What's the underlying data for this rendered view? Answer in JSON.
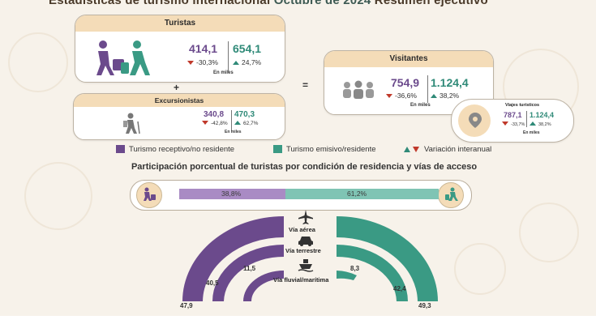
{
  "header": {
    "title": "Estadísticas de turismo internacional",
    "period": "Octubre de 2024",
    "subtitle": "Resumen ejecutivo"
  },
  "operators": {
    "plus": "+",
    "equals": "="
  },
  "cards": {
    "turistas": {
      "title": "Turistas",
      "receptivo": "414,1",
      "emisivo": "654,1",
      "var_receptivo": "-30,3%",
      "var_emisivo": "24,7%",
      "unit": "En miles"
    },
    "excursionistas": {
      "title": "Excursionistas",
      "receptivo": "340,8",
      "emisivo": "470,3",
      "var_receptivo": "-42,8%",
      "var_emisivo": "62,7%",
      "unit": "En miles"
    },
    "visitantes": {
      "title": "Visitantes",
      "receptivo": "754,9",
      "emisivo": "1.124,4",
      "var_receptivo": "-36,6%",
      "var_emisivo": "38,2%",
      "unit": "En miles"
    },
    "viajes": {
      "title": "Viajes turísticos",
      "receptivo": "787,1",
      "emisivo": "1.124,4",
      "var_receptivo": "-33,7%",
      "var_emisivo": "38,2%",
      "unit": "En miles"
    }
  },
  "legend": {
    "receptivo": "Turismo receptivo/no residente",
    "emisivo": "Turismo emisivo/residente",
    "variacion": "Variación interanual"
  },
  "participation": {
    "subtitle": "Participación porcentual de turistas por condición de residencia y vías de acceso",
    "receptivo_share": "38,8%",
    "emisivo_share": "61,2%"
  },
  "access_modes": [
    {
      "label": "Vía aérea",
      "receptivo": "47,9",
      "emisivo": "49,3"
    },
    {
      "label": "Vía terrestre",
      "receptivo": "40,5",
      "emisivo": "42,4"
    },
    {
      "label": "Vía fluvial/marítima",
      "receptivo": "11,5",
      "emisivo": "8,3"
    }
  ],
  "colors": {
    "receptivo": "#6b4a8c",
    "emisivo": "#3a9a84",
    "card_header": "#f4dcb8",
    "down": "#c0392b",
    "up": "#2f8a78"
  }
}
